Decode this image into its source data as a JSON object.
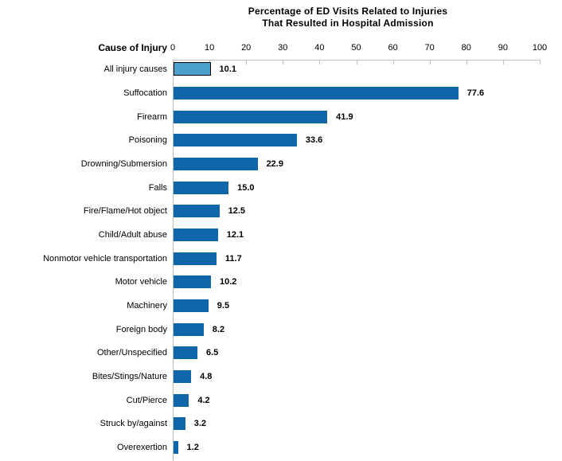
{
  "title": {
    "line1": "Percentage of ED Visits Related to Injuries",
    "line2": "That Resulted in Hospital Admission"
  },
  "axis": {
    "label": "Cause of Injury",
    "ticks": [
      "0",
      "10",
      "20",
      "30",
      "40",
      "50",
      "60",
      "70",
      "80",
      "90",
      "100"
    ]
  },
  "chart_data": {
    "type": "bar",
    "orientation": "horizontal",
    "title": "Percentage of ED Visits Related to Injuries That Resulted in Hospital Admission",
    "xlabel": "",
    "ylabel": "Cause of Injury",
    "xlim": [
      0,
      100
    ],
    "x_ticks": [
      0,
      10,
      20,
      30,
      40,
      50,
      60,
      70,
      80,
      90,
      100
    ],
    "grid": false,
    "legend": "none",
    "categories": [
      "All injury causes",
      "Suffocation",
      "Firearm",
      "Poisoning",
      "Drowning/Submersion",
      "Falls",
      "Fire/Flame/Hot object",
      "Child/Adult abuse",
      "Nonmotor vehicle transportation",
      "Motor vehicle",
      "Machinery",
      "Foreign body",
      "Other/Unspecified",
      "Bites/Stings/Nature",
      "Cut/Pierce",
      "Struck by/against",
      "Overexertion"
    ],
    "values": [
      10.1,
      77.6,
      41.9,
      33.6,
      22.9,
      15.0,
      12.5,
      12.1,
      11.7,
      10.2,
      9.5,
      8.2,
      6.5,
      4.8,
      4.2,
      3.2,
      1.2
    ],
    "value_labels": [
      "10.1",
      "77.6",
      "41.9",
      "33.6",
      "22.9",
      "15.0",
      "12.5",
      "12.1",
      "11.7",
      "10.2",
      "9.5",
      "8.2",
      "6.5",
      "4.8",
      "4.2",
      "3.2",
      "1.2"
    ],
    "highlight_index": 0
  },
  "colors": {
    "bar": "#0F66A9",
    "highlight_bar": "#4BA0CD",
    "highlight_border": "#000000",
    "axis_line": "#BFBFBF",
    "text": "#000000"
  }
}
